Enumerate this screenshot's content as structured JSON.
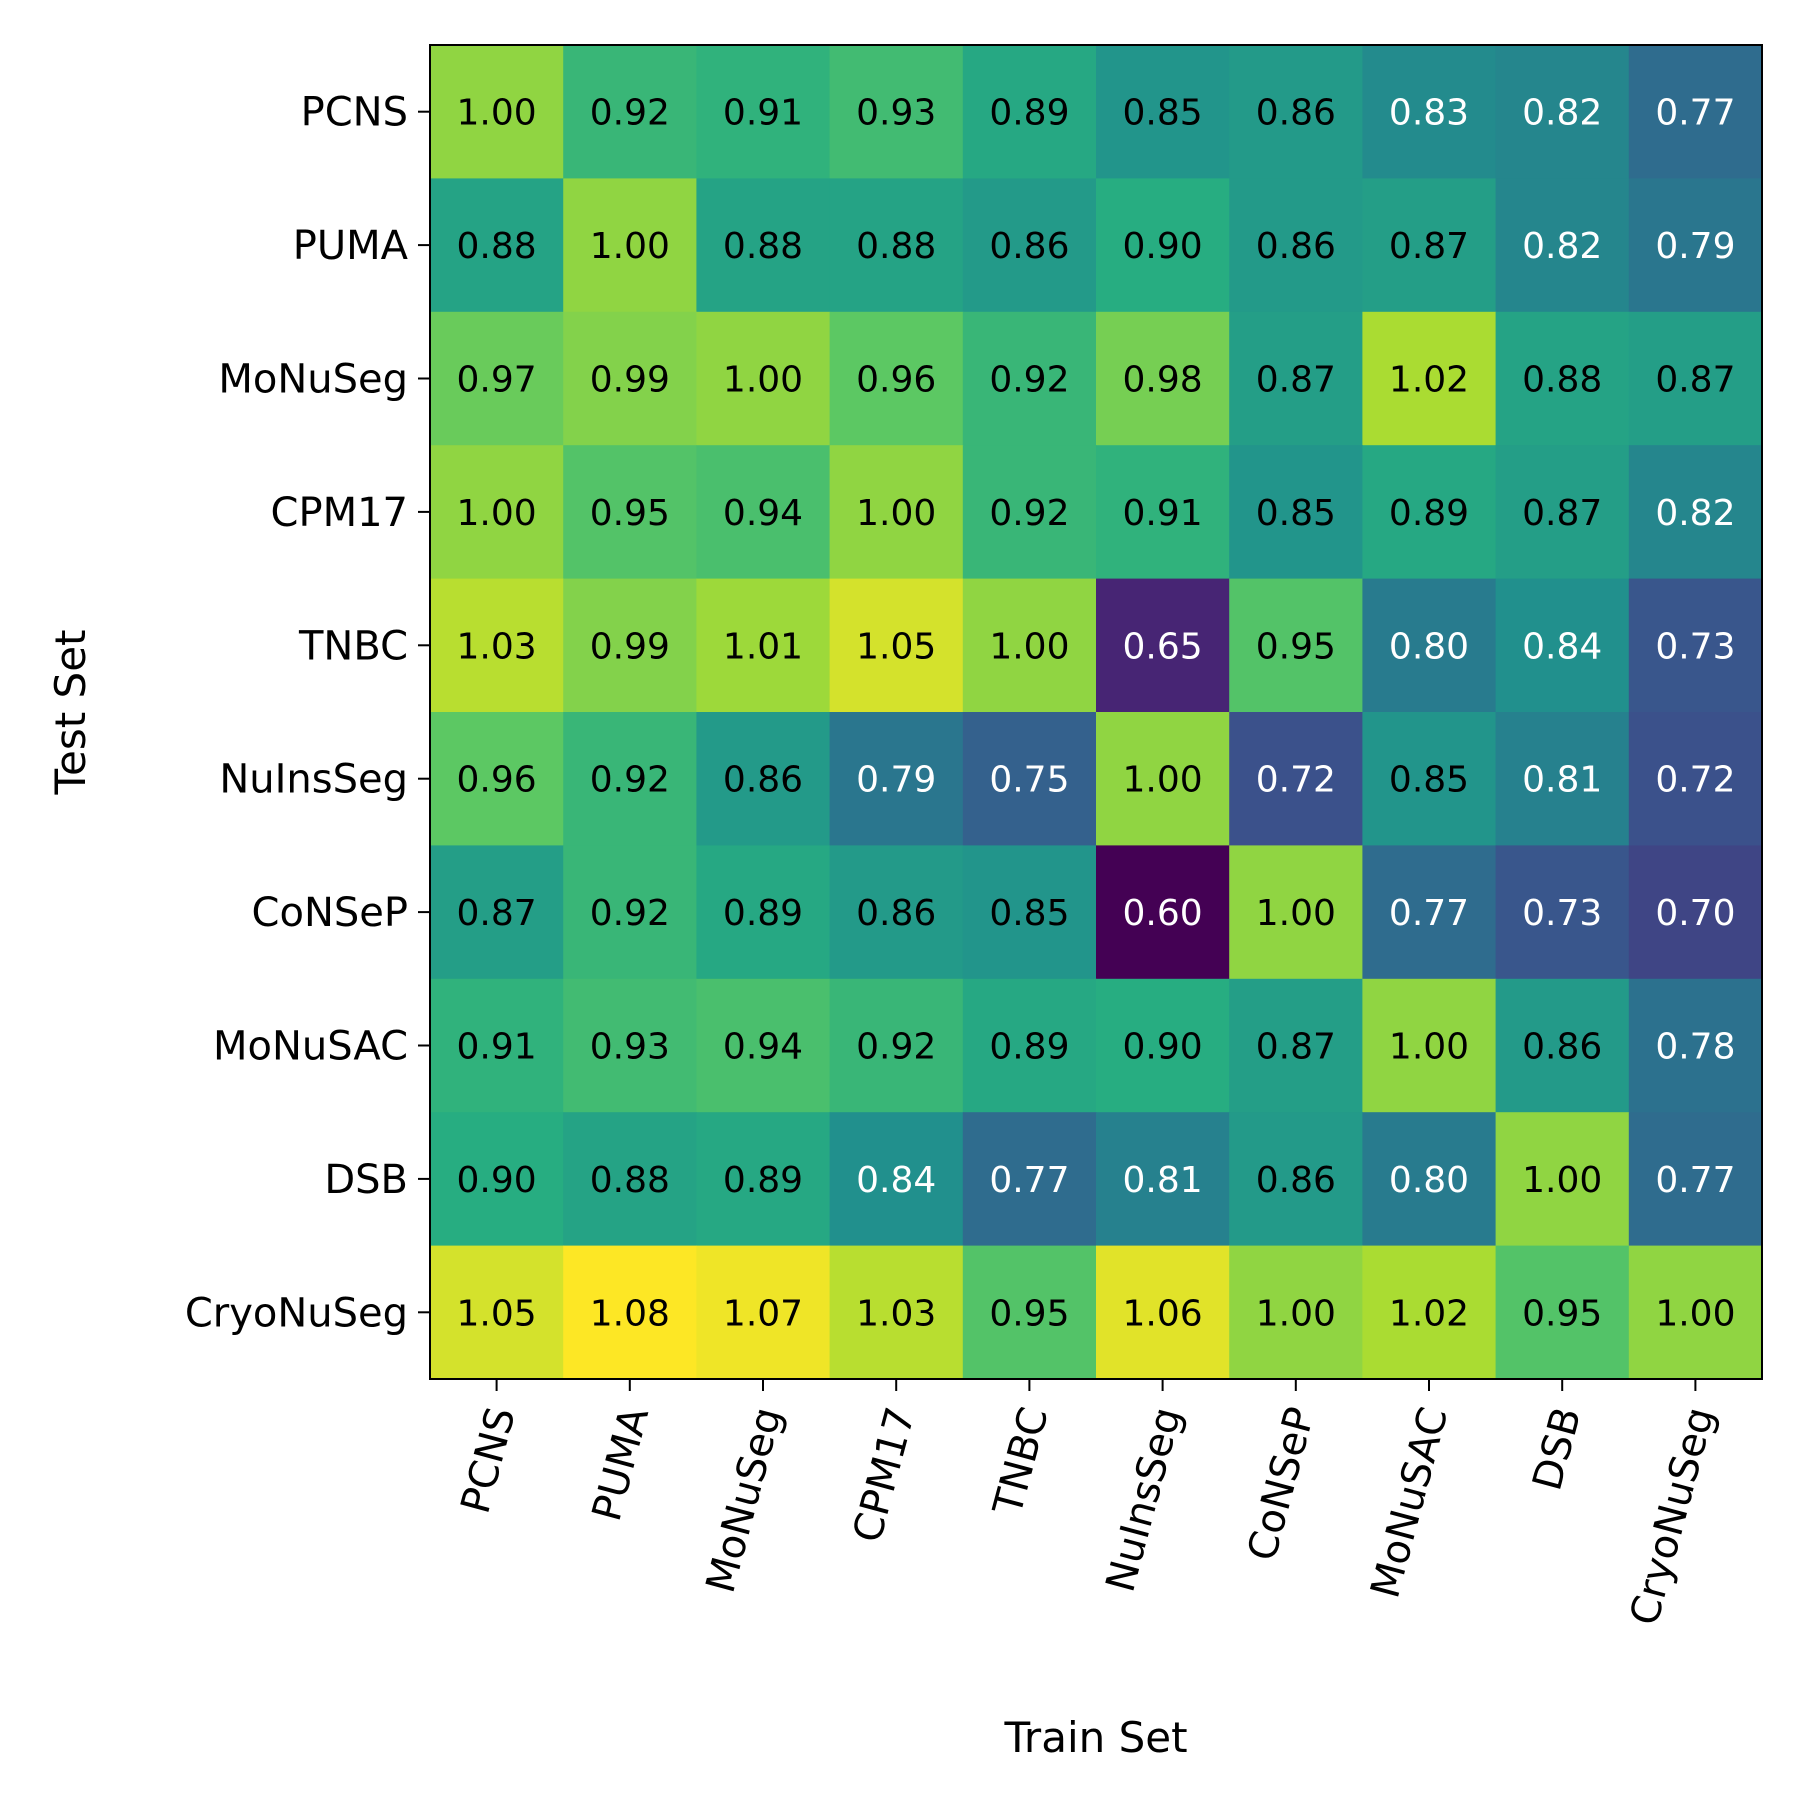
{
  "chart_data": {
    "type": "heatmap",
    "title": "",
    "xlabel": "Train Set",
    "ylabel": "Test Set",
    "x_categories": [
      "PCNS",
      "PUMA",
      "MoNuSeg",
      "CPM17",
      "TNBC",
      "NuInsSeg",
      "CoNSeP",
      "MoNuSAC",
      "DSB",
      "CryoNuSeg"
    ],
    "y_categories": [
      "PCNS",
      "PUMA",
      "MoNuSeg",
      "CPM17",
      "TNBC",
      "NuInsSeg",
      "CoNSeP",
      "MoNuSAC",
      "DSB",
      "CryoNuSeg"
    ],
    "values": [
      [
        1.0,
        0.92,
        0.91,
        0.93,
        0.89,
        0.85,
        0.86,
        0.83,
        0.82,
        0.77
      ],
      [
        0.88,
        1.0,
        0.88,
        0.88,
        0.86,
        0.9,
        0.86,
        0.87,
        0.82,
        0.79
      ],
      [
        0.97,
        0.99,
        1.0,
        0.96,
        0.92,
        0.98,
        0.87,
        1.02,
        0.88,
        0.87
      ],
      [
        1.0,
        0.95,
        0.94,
        1.0,
        0.92,
        0.91,
        0.85,
        0.89,
        0.87,
        0.82
      ],
      [
        1.03,
        0.99,
        1.01,
        1.05,
        1.0,
        0.65,
        0.95,
        0.8,
        0.84,
        0.73
      ],
      [
        0.96,
        0.92,
        0.86,
        0.79,
        0.75,
        1.0,
        0.72,
        0.85,
        0.81,
        0.72
      ],
      [
        0.87,
        0.92,
        0.89,
        0.86,
        0.85,
        0.6,
        1.0,
        0.77,
        0.73,
        0.7
      ],
      [
        0.91,
        0.93,
        0.94,
        0.92,
        0.89,
        0.9,
        0.87,
        1.0,
        0.86,
        0.78
      ],
      [
        0.9,
        0.88,
        0.89,
        0.84,
        0.77,
        0.81,
        0.86,
        0.8,
        1.0,
        0.77
      ],
      [
        1.05,
        1.08,
        1.07,
        1.03,
        0.95,
        1.06,
        1.0,
        1.02,
        0.95,
        1.0
      ]
    ],
    "value_range": [
      0.6,
      1.08
    ],
    "colormap": "viridis",
    "grid": false,
    "legend": "none"
  }
}
